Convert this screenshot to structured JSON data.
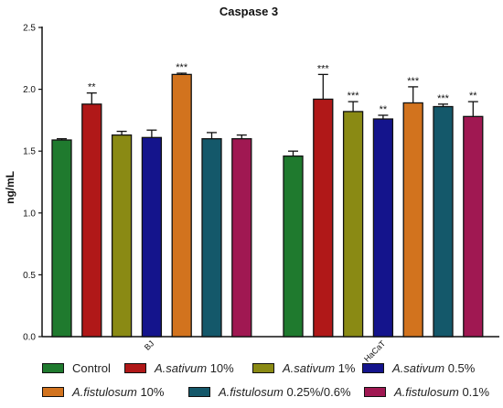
{
  "chart_data": {
    "type": "bar",
    "title": "Caspase 3",
    "xlabel": "",
    "ylabel": "ng/mL",
    "ylim": [
      0,
      2.5
    ],
    "yticks": [
      "0.0",
      "0.5",
      "1.0",
      "1.5",
      "2.0",
      "2.5"
    ],
    "grid": false,
    "legend_position": "bottom",
    "groups": [
      {
        "label": "BJ",
        "bars": [
          {
            "series": "Control",
            "value": 1.59,
            "error": 0.01,
            "sig": ""
          },
          {
            "series": "A.sativum 10%",
            "value": 1.88,
            "error": 0.09,
            "sig": "**"
          },
          {
            "series": "A.sativum 1%",
            "value": 1.63,
            "error": 0.03,
            "sig": ""
          },
          {
            "series": "A.sativum 0.5%",
            "value": 1.61,
            "error": 0.06,
            "sig": ""
          },
          {
            "series": "A.fistulosum 10%",
            "value": 2.12,
            "error": 0.01,
            "sig": "***"
          },
          {
            "series": "A.fistulosum 0.25%/0.6%",
            "value": 1.6,
            "error": 0.05,
            "sig": ""
          },
          {
            "series": "A.fistulosum 0.1%",
            "value": 1.6,
            "error": 0.03,
            "sig": ""
          }
        ]
      },
      {
        "label": "HaCaT",
        "bars": [
          {
            "series": "Control",
            "value": 1.46,
            "error": 0.04,
            "sig": ""
          },
          {
            "series": "A.sativum 10%",
            "value": 1.92,
            "error": 0.2,
            "sig": "***"
          },
          {
            "series": "A.sativum 1%",
            "value": 1.82,
            "error": 0.08,
            "sig": "***"
          },
          {
            "series": "A.sativum 0.5%",
            "value": 1.76,
            "error": 0.03,
            "sig": "**"
          },
          {
            "series": "A.fistulosum 10%",
            "value": 1.89,
            "error": 0.13,
            "sig": "***"
          },
          {
            "series": "A.fistulosum 0.25%/0.6%",
            "value": 1.86,
            "error": 0.02,
            "sig": "***"
          },
          {
            "series": "A.fistulosum 0.1%",
            "value": 1.78,
            "error": 0.12,
            "sig": "**"
          }
        ]
      }
    ],
    "series": [
      {
        "name": "Control",
        "species": "",
        "dose": "Control",
        "color": "#1f7a2e"
      },
      {
        "name": "A.sativum 10%",
        "species": "A.sativum",
        "dose": "10%",
        "color": "#b01818"
      },
      {
        "name": "A.sativum 1%",
        "species": "A.sativum",
        "dose": "1%",
        "color": "#8a8a14"
      },
      {
        "name": "A.sativum 0.5%",
        "species": "A.sativum",
        "dose": "0.5%",
        "color": "#14148c"
      },
      {
        "name": "A.fistulosum 10%",
        "species": "A.fistulosum",
        "dose": "10%",
        "color": "#d2731e"
      },
      {
        "name": "A.fistulosum 0.25%/0.6%",
        "species": "A.fistulosum",
        "dose": "0.25%/0.6%",
        "color": "#14586a"
      },
      {
        "name": "A.fistulosum 0.1%",
        "species": "A.fistulosum",
        "dose": "0.1%",
        "color": "#a01852"
      }
    ]
  }
}
